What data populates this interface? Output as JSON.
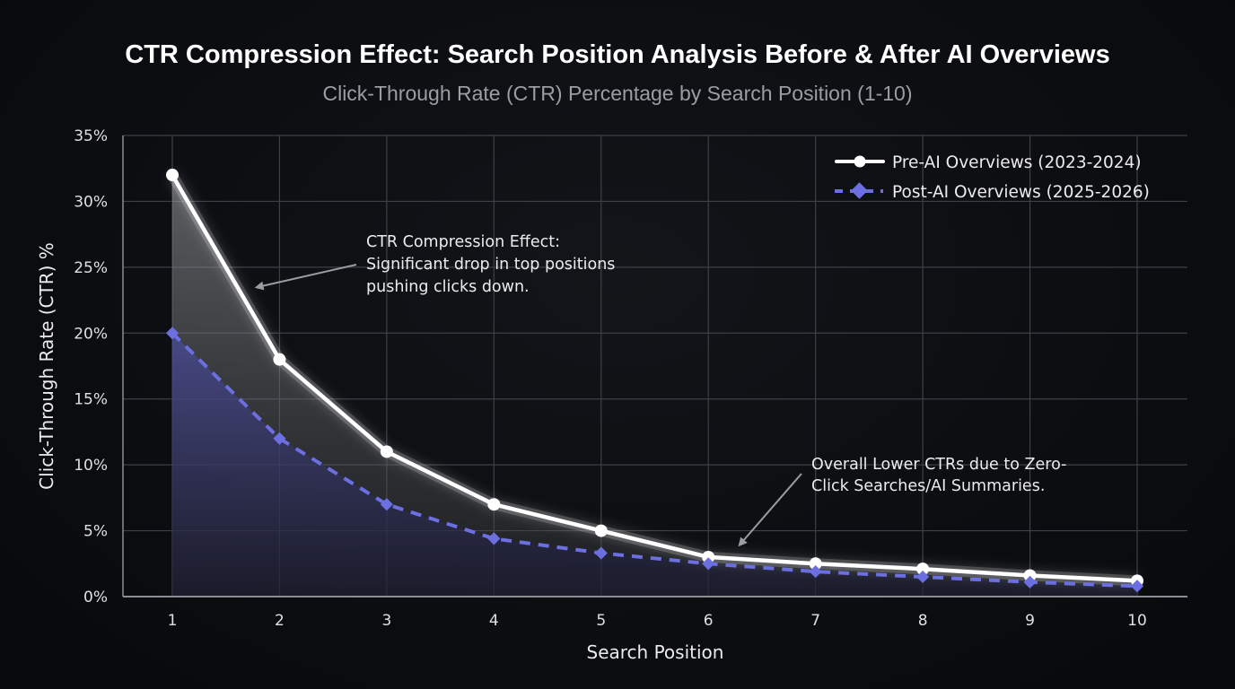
{
  "chart_data": {
    "type": "line",
    "title": "CTR Compression Effect: Search Position Analysis Before & After AI Overviews",
    "subtitle": "Click-Through Rate (CTR) Percentage by Search Position (1-10)",
    "xlabel": "Search Position",
    "ylabel": "Click-Through Rate (CTR) %",
    "x": [
      1,
      2,
      3,
      4,
      5,
      6,
      7,
      8,
      9,
      10
    ],
    "x_tick_labels": [
      "1",
      "2",
      "3",
      "4",
      "5",
      "6",
      "7",
      "8",
      "9",
      "10"
    ],
    "ylim": [
      0,
      35
    ],
    "y_ticks": [
      0,
      5,
      10,
      15,
      20,
      25,
      30,
      35
    ],
    "y_tick_labels": [
      "0%",
      "5%",
      "10%",
      "15%",
      "20%",
      "25%",
      "30%",
      "35%"
    ],
    "grid": true,
    "legend_position": "top-right",
    "series": [
      {
        "name": "Pre-AI Overviews (2023-2024)",
        "values": [
          32,
          18,
          11,
          7,
          5,
          3,
          2.5,
          2.1,
          1.6,
          1.2
        ],
        "color": "#ffffff",
        "line_style": "solid",
        "marker": "circle",
        "area_fill": true
      },
      {
        "name": "Post-AI Overviews (2025-2026)",
        "values": [
          20,
          12,
          7,
          4.4,
          3.3,
          2.5,
          1.9,
          1.5,
          1.1,
          0.8
        ],
        "color": "#6b6fe0",
        "line_style": "dashed",
        "marker": "diamond",
        "area_fill": true
      }
    ],
    "annotations": [
      {
        "lines": [
          "CTR Compression Effect:",
          "Significant drop in top positions",
          "pushing clicks down."
        ],
        "points_to": {
          "x": 1.8,
          "y": 23.5
        }
      },
      {
        "lines": [
          "Overall Lower CTRs due to Zero-",
          "Click Searches/AI Summaries."
        ],
        "points_to": {
          "x": 6.3,
          "y": 4
        }
      }
    ]
  },
  "colors": {
    "background": "#0b0d10",
    "grid": "#3d4046",
    "pre_series": "#ffffff",
    "post_series": "#6b6fe0",
    "annotation_arrow": "#9a9ca2"
  }
}
